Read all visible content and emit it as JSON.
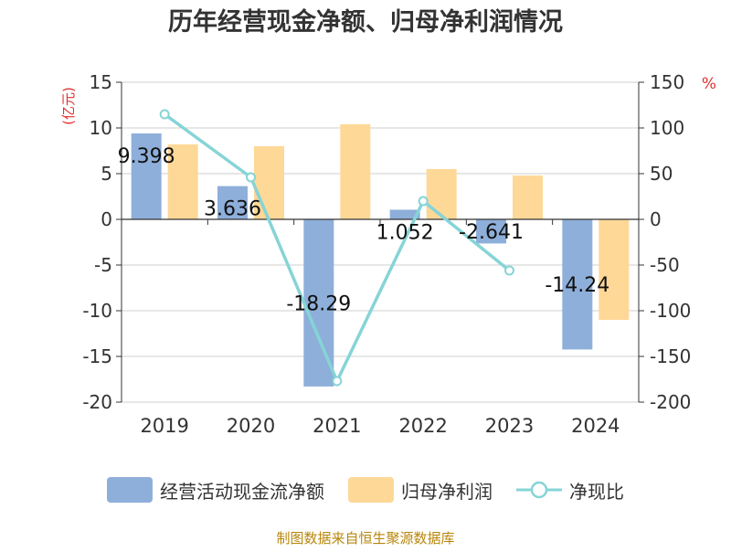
{
  "chart_data": {
    "type": "bar",
    "title": "历年经营现金净额、归母净利润情况",
    "categories": [
      "2019",
      "2020",
      "2021",
      "2022",
      "2023",
      "2024"
    ],
    "y_left": {
      "label": "(亿元)",
      "range": [
        -20,
        15
      ],
      "ticks": [
        "15",
        "10",
        "5",
        "0",
        "-5",
        "-10",
        "-15",
        "-20"
      ]
    },
    "y_right": {
      "label": "%",
      "range": [
        -200,
        150
      ],
      "ticks": [
        "150",
        "100",
        "50",
        "0",
        "-50",
        "-100",
        "-150",
        "-200"
      ]
    },
    "grid": true,
    "series": [
      {
        "name": "经营活动现金流净额",
        "type": "bar",
        "axis": "left",
        "color": "#8eafda",
        "values": [
          9.398,
          3.636,
          -18.29,
          1.052,
          -2.641,
          -14.24
        ],
        "labels": [
          "9.398",
          "3.636",
          "-18.29",
          "1.052",
          "-2.641",
          "-14.24"
        ]
      },
      {
        "name": "归母净利润",
        "type": "bar",
        "axis": "left",
        "color": "#fed897",
        "values": [
          8.2,
          8.0,
          10.4,
          5.5,
          4.8,
          -11.0
        ]
      },
      {
        "name": "净现比",
        "type": "line",
        "axis": "right",
        "color": "#86d4d6",
        "values": [
          115,
          46,
          -177,
          20,
          -56,
          null
        ]
      }
    ],
    "legend_position": "bottom",
    "source": "制图数据来自恒生聚源数据库"
  }
}
